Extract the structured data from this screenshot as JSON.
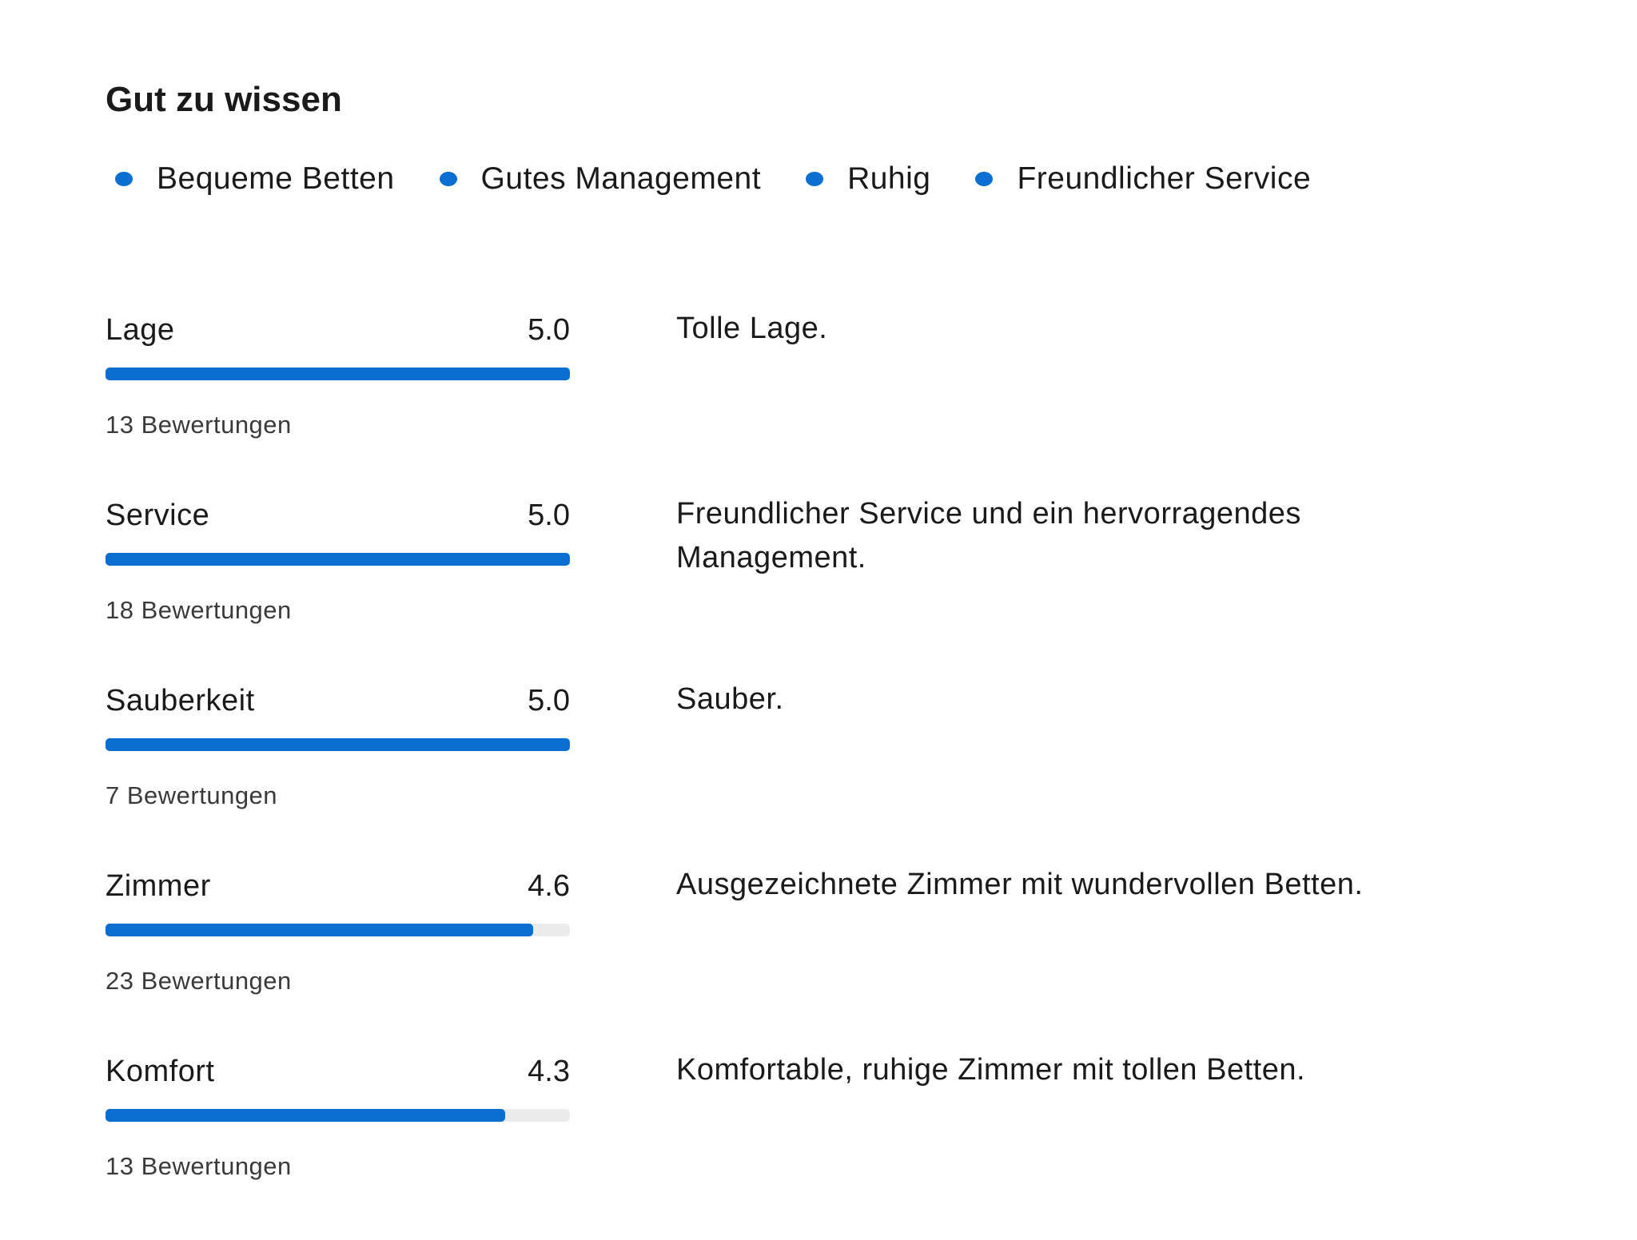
{
  "section": {
    "title": "Gut zu wissen"
  },
  "highlights": [
    "Bequeme Betten",
    "Gutes Management",
    "Ruhig",
    "Freundlicher Service"
  ],
  "accent_color": "#0a6fd1",
  "rating_max": 5,
  "ratings": [
    {
      "label": "Lage",
      "score": "5.0",
      "value": 5.0,
      "count": "13 Bewertungen",
      "description": "Tolle Lage."
    },
    {
      "label": "Service",
      "score": "5.0",
      "value": 5.0,
      "count": "18 Bewertungen",
      "description": "Freundlicher Service und ein hervorragendes Management."
    },
    {
      "label": "Sauberkeit",
      "score": "5.0",
      "value": 5.0,
      "count": "7 Bewertungen",
      "description": "Sauber."
    },
    {
      "label": "Zimmer",
      "score": "4.6",
      "value": 4.6,
      "count": "23 Bewertungen",
      "description": "Ausgezeichnete Zimmer mit wundervollen Betten."
    },
    {
      "label": "Komfort",
      "score": "4.3",
      "value": 4.3,
      "count": "13 Bewertungen",
      "description": "Komfortable, ruhige Zimmer mit tollen Betten."
    }
  ]
}
